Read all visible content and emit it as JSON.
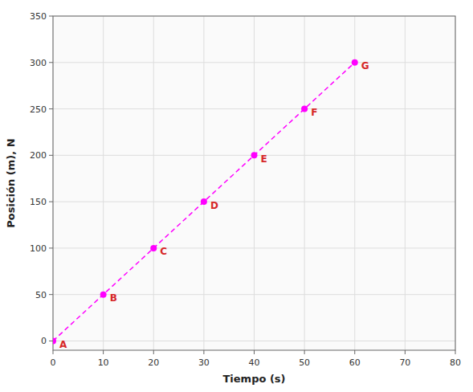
{
  "chart_data": {
    "type": "line",
    "x": [
      0,
      10,
      20,
      30,
      40,
      50,
      60
    ],
    "series": [
      {
        "values": [
          0,
          50,
          100,
          150,
          200,
          250,
          300
        ],
        "labels": [
          "A",
          "B",
          "C",
          "D",
          "E",
          "F",
          "G"
        ],
        "color": "#FF00FF",
        "line_style": "dashed",
        "marker": "circle"
      }
    ],
    "x_label": "Tiempo (s)",
    "y_label": "Posición (m), N",
    "xlim": [
      0,
      80
    ],
    "ylim": [
      -10,
      350
    ],
    "xticks": [
      0,
      10,
      20,
      30,
      40,
      50,
      60,
      70,
      80
    ],
    "yticks": [
      0,
      50,
      100,
      150,
      200,
      250,
      300,
      350
    ],
    "grid": true
  }
}
